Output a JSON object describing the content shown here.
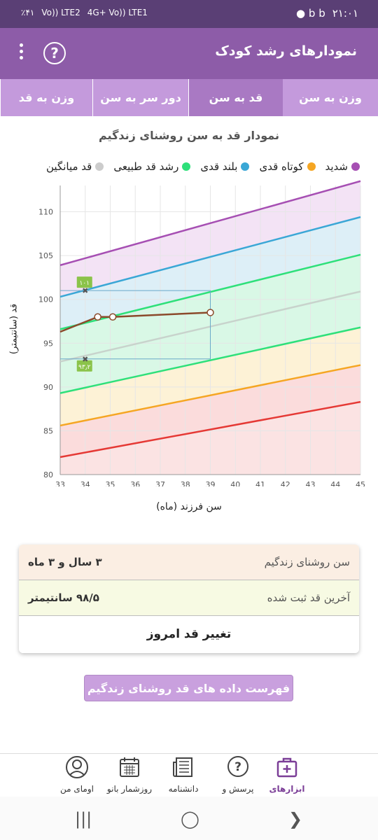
{
  "status": {
    "battery": "٪۴۱",
    "time": "۲۱:۰۱",
    "network1": "Vo)) LTE2",
    "network2": "4G+ Vo)) LTE1"
  },
  "app": {
    "title": "نمودارهای رشد کودک",
    "help_icon": "question-icon",
    "menu_icon": "more-vert-icon"
  },
  "tabs": [
    {
      "label": "وزن به سن"
    },
    {
      "label": "قد به سن"
    },
    {
      "label": "دور سر به سن"
    },
    {
      "label": "وزن به قد"
    }
  ],
  "chart_title": "نمودار قد به سن روشنای زندگیم",
  "legend": [
    {
      "label": "شدید",
      "color": "#a64fb3"
    },
    {
      "label": "کوتاه قدی",
      "color": "#f5a623"
    },
    {
      "label": "بلند قدی",
      "color": "#3aa7d6"
    },
    {
      "label": "رشد قد طبیعی",
      "color": "#2ee07a"
    },
    {
      "label": "قد میانگین",
      "color": "#cccccc"
    }
  ],
  "chart_data": {
    "type": "line",
    "xlabel": "سن فرزند (ماه)",
    "ylabel": "قد (سانتیمتر)",
    "xlim": [
      33,
      45
    ],
    "ylim": [
      80,
      113
    ],
    "xticks": [
      "33",
      "34",
      "35",
      "36",
      "37",
      "38",
      "39",
      "40",
      "41",
      "42",
      "43",
      "44",
      "45"
    ],
    "yticks": [
      "80",
      "85",
      "90",
      "95",
      "100",
      "105",
      "110"
    ],
    "series": [
      {
        "name": "شدید",
        "color": "#a64fb3",
        "points": [
          [
            33,
            103.9
          ],
          [
            45,
            113.5
          ]
        ]
      },
      {
        "name": "بلند قدی",
        "color": "#3aa7d6",
        "points": [
          [
            33,
            100.3
          ],
          [
            45,
            109.4
          ]
        ]
      },
      {
        "name": "رشد قد طبیعی",
        "color": "#2ee07a",
        "points": [
          [
            33,
            96.6
          ],
          [
            45,
            105.1
          ]
        ]
      },
      {
        "name": "قد میانگین",
        "color": "#c8d3cc",
        "points": [
          [
            33,
            92.9
          ],
          [
            45,
            100.9
          ]
        ]
      },
      {
        "color": "#2ee07a",
        "points": [
          [
            33,
            89.3
          ],
          [
            45,
            96.8
          ]
        ]
      },
      {
        "color": "#f5a623",
        "points": [
          [
            33,
            85.6
          ],
          [
            45,
            92.5
          ]
        ]
      },
      {
        "color": "#e53935",
        "points": [
          [
            33,
            82.0
          ],
          [
            45,
            88.3
          ]
        ]
      }
    ],
    "child_series": {
      "color": "#8b4a2b",
      "points": [
        [
          33,
          96.3
        ],
        [
          34.5,
          98.0
        ],
        [
          35.1,
          98.0
        ],
        [
          39,
          98.5
        ]
      ]
    },
    "markers": [
      {
        "x": 34,
        "y": 101,
        "label": "۱۰۱"
      },
      {
        "x": 34,
        "y": 93.2,
        "label": "۹۳٫۲"
      }
    ],
    "guide": {
      "x": 39,
      "y_top": 101,
      "y_bottom": 93.2
    }
  },
  "summary": {
    "age_label": "سن روشنای زندگیم",
    "age_value": "۳ سال و ۳ ماه",
    "height_label": "آخرین قد ثبت شده",
    "height_value": "۹۸/۵ سانتیمتر",
    "change_button": "تغییر قد امروز"
  },
  "list_button": "فهرست داده های قد روشنای زندگیم",
  "bottom_nav": [
    {
      "label": "ابزارهای",
      "icon": "medical-kit-icon",
      "active": true
    },
    {
      "label": "پرسش و",
      "icon": "question-bubble-icon"
    },
    {
      "label": "دانشنامه",
      "icon": "newspaper-icon"
    },
    {
      "label": "روزشمار بانو",
      "icon": "calendar-icon"
    },
    {
      "label": "اومای من",
      "icon": "avatar-icon"
    }
  ]
}
